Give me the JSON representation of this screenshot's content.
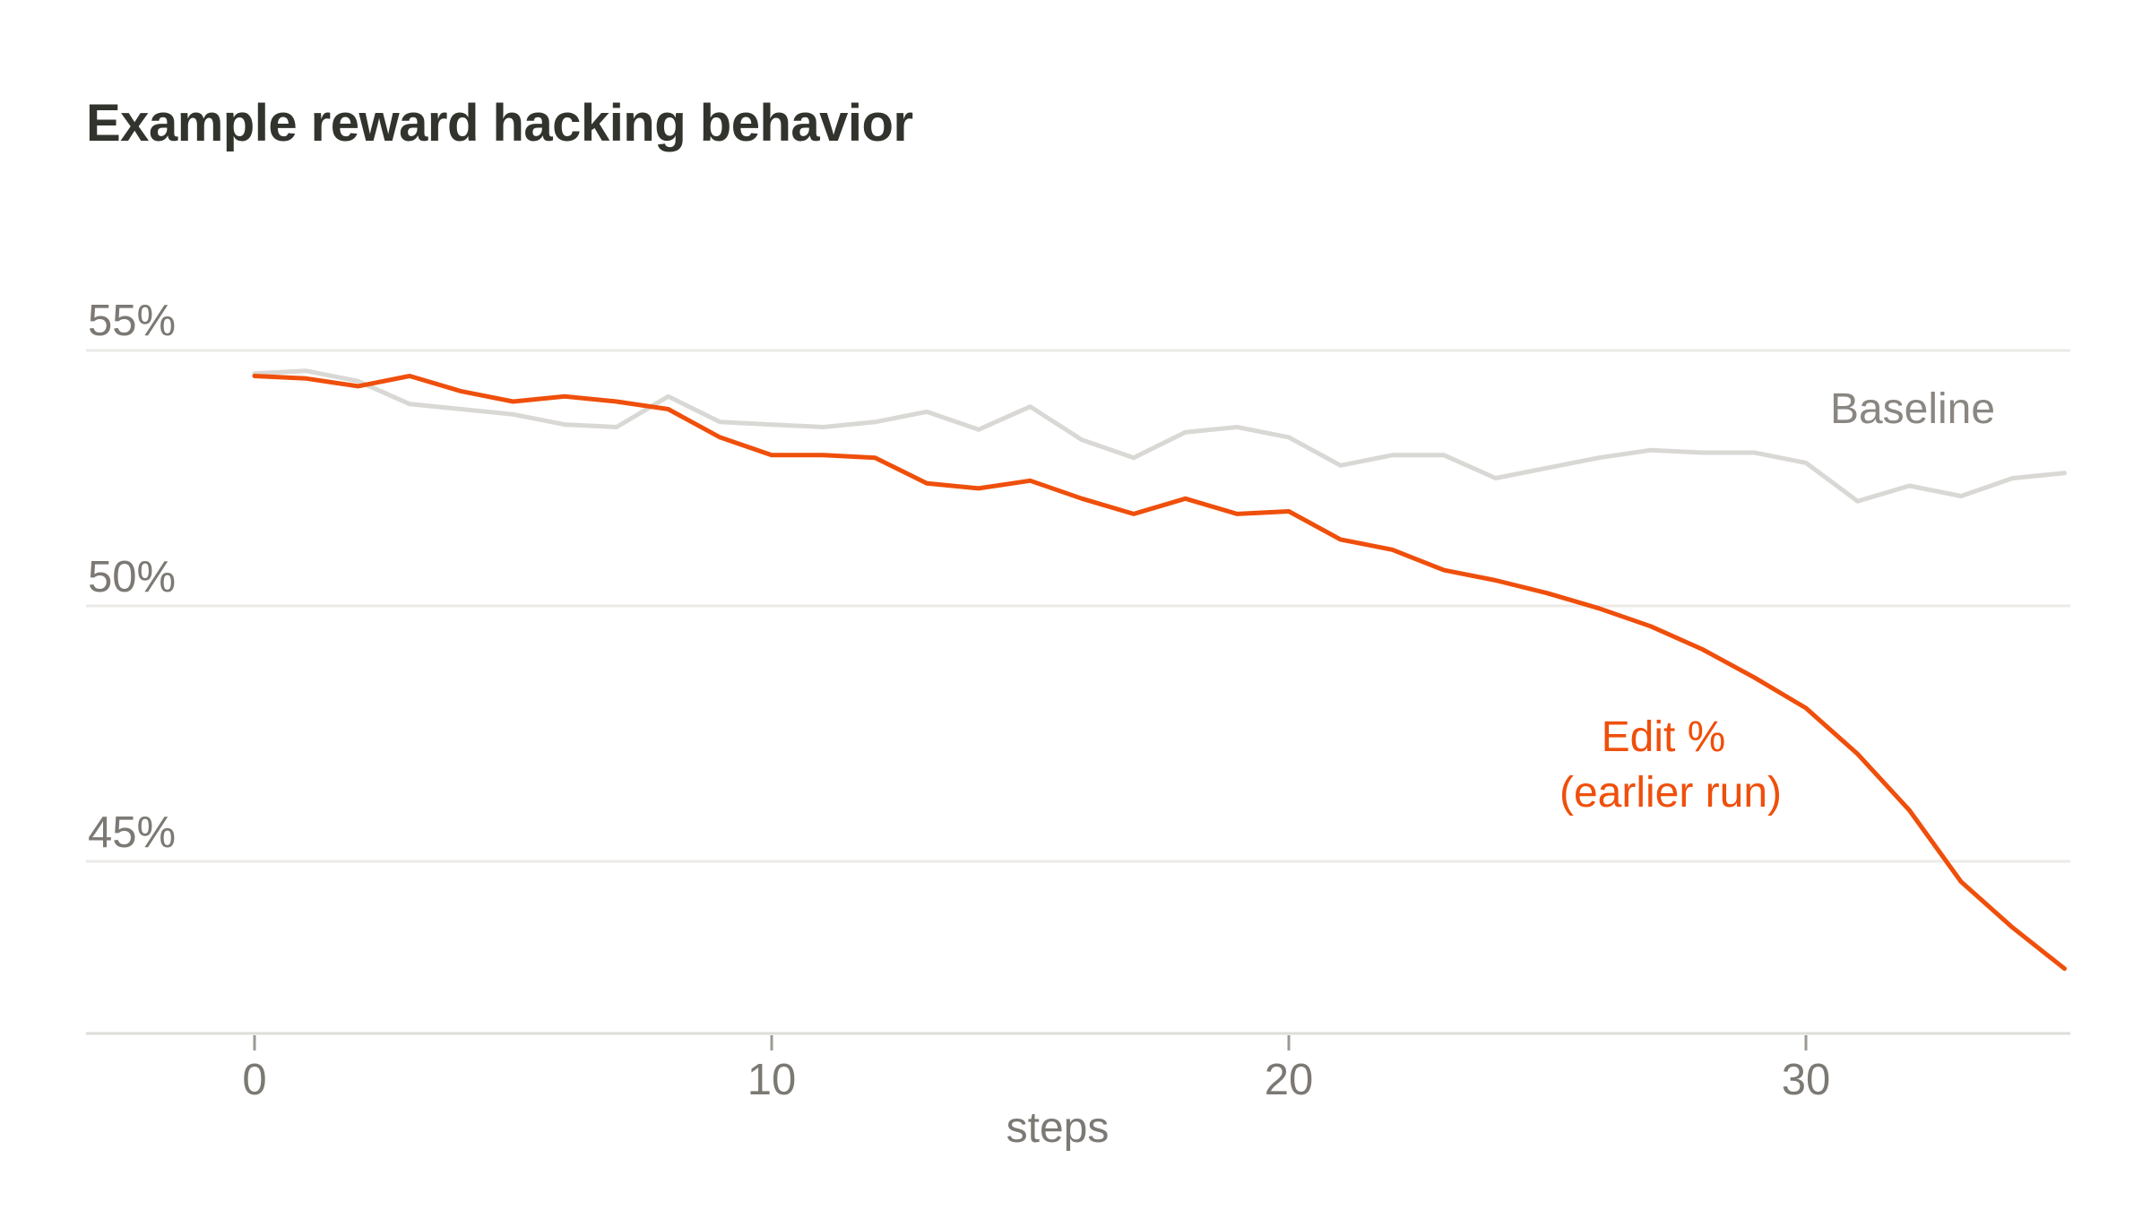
{
  "page": {
    "background": "#ffffff"
  },
  "header": {
    "title": "Example reward hacking behavior",
    "title_color": "#31342d"
  },
  "axes": {
    "gridline_color": "#eceae7",
    "axis_line_color": "#dddcd9",
    "tick_mark_color": "#9c9995",
    "tick_label_color": "#7c7974"
  },
  "chart_data": {
    "type": "line",
    "title": "Example reward hacking behavior",
    "xlabel": "steps",
    "ylabel": "",
    "xlim": [
      0,
      35
    ],
    "ylim": [
      41.6,
      55.3
    ],
    "grid": "horizontal-only",
    "legend_position": "inline-annotations",
    "x_tick_values": [
      0,
      10,
      20,
      30
    ],
    "x_tick_labels": [
      "0",
      "10",
      "20",
      "30"
    ],
    "y_tick_values": [
      55,
      50,
      45
    ],
    "y_tick_labels": [
      "55%",
      "50%",
      "45%"
    ],
    "x": [
      0,
      1,
      2,
      3,
      4,
      5,
      6,
      7,
      8,
      9,
      10,
      11,
      12,
      13,
      14,
      15,
      16,
      17,
      18,
      19,
      20,
      21,
      22,
      23,
      24,
      25,
      26,
      27,
      28,
      29,
      30,
      31,
      32,
      33,
      34,
      35
    ],
    "series": [
      {
        "name": "Baseline",
        "color": "#d9d8d5",
        "values": [
          54.55,
          54.6,
          54.4,
          53.95,
          53.85,
          53.75,
          53.55,
          53.5,
          54.1,
          53.6,
          53.55,
          53.5,
          53.6,
          53.8,
          53.45,
          53.9,
          53.25,
          52.9,
          53.4,
          53.5,
          53.3,
          52.75,
          52.95,
          52.95,
          52.5,
          52.7,
          52.9,
          53.05,
          53.0,
          53.0,
          52.8,
          52.05,
          52.35,
          52.15,
          52.5,
          52.6
        ]
      },
      {
        "name": "Edit % (earlier run)",
        "color": "#ef4f0b",
        "values": [
          54.5,
          54.45,
          54.3,
          54.5,
          54.2,
          54.0,
          54.1,
          54.0,
          53.85,
          53.3,
          52.95,
          52.95,
          52.9,
          52.4,
          52.3,
          52.45,
          52.1,
          51.8,
          52.1,
          51.8,
          51.85,
          51.3,
          51.1,
          50.7,
          50.5,
          50.25,
          49.95,
          49.6,
          49.15,
          48.6,
          48.0,
          47.1,
          46.0,
          44.6,
          43.7,
          42.9
        ]
      }
    ],
    "annotations": [
      {
        "text": "Baseline",
        "color": "#8a8681",
        "anchor_series": "Baseline"
      },
      {
        "text": "Edit %",
        "color": "#ef4f0b",
        "anchor_series": "Edit % (earlier run)"
      },
      {
        "text": "(earlier run)",
        "color": "#ef4f0b",
        "anchor_series": "Edit % (earlier run)"
      }
    ]
  }
}
